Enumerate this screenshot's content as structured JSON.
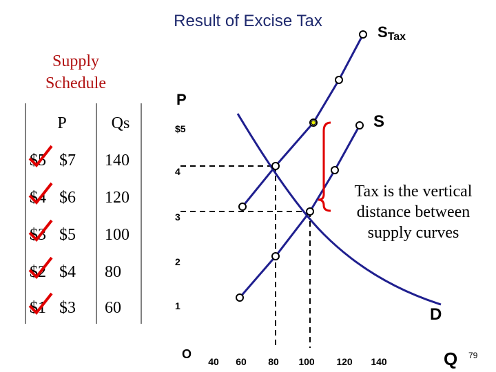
{
  "title": "Result of Excise Tax",
  "schedule": {
    "title": [
      "Supply",
      "Schedule"
    ],
    "header": [
      "P",
      "Qs"
    ],
    "rows": [
      [
        "$5",
        "$7",
        "140"
      ],
      [
        "$4",
        "$6",
        "120"
      ],
      [
        "$3",
        "$5",
        "100"
      ],
      [
        "$2",
        "$4",
        "80"
      ],
      [
        "$1",
        "$3",
        "60"
      ]
    ]
  },
  "diagram": {
    "y_axis_label": "P",
    "x_axis_label": "Q",
    "origin": "O",
    "y_ticks": [
      "$5",
      "4",
      "3",
      "2",
      "1"
    ],
    "x_ticks": [
      "40",
      "60",
      "80",
      "100",
      "120",
      "140"
    ],
    "supply_label": "S",
    "tax_supply_label": {
      "main": "S",
      "sub": "Tax"
    },
    "demand_label": "D",
    "annotation": [
      "Tax is the vertical",
      "distance between",
      "supply curves"
    ]
  },
  "page_number": "79"
}
